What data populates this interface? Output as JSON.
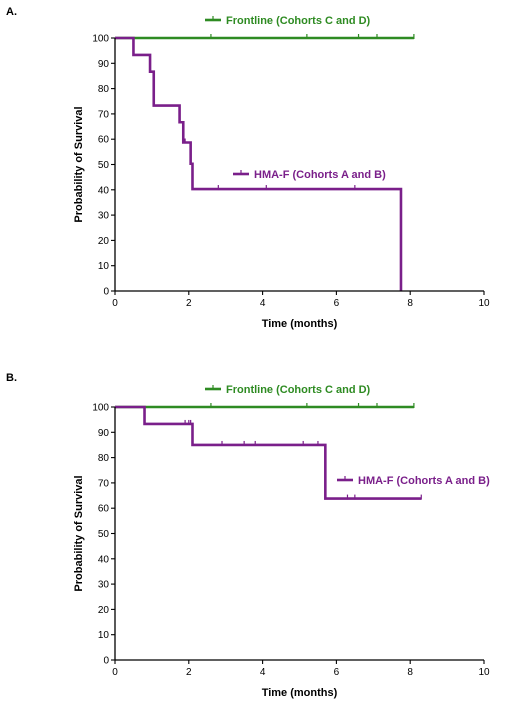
{
  "colors": {
    "frontline": "#2e8b22",
    "hmaf": "#7a1f8a",
    "axis": "#000000"
  },
  "chart_data": [
    {
      "type": "line",
      "panel_label": "A.",
      "xlabel": "Time (months)",
      "ylabel": "Probability of Survival",
      "xlim": [
        0,
        10
      ],
      "ylim": [
        0,
        100
      ],
      "xticks": [
        0,
        2,
        4,
        6,
        8,
        10
      ],
      "yticks": [
        0,
        10,
        20,
        30,
        40,
        50,
        60,
        70,
        80,
        90,
        100
      ],
      "legend_placement": "top-right",
      "series": [
        {
          "name": "Frontline (Cohorts C and D)",
          "color_key": "frontline",
          "step_points": [
            [
              0,
              100
            ],
            [
              8.1,
              100
            ]
          ],
          "censor_times": [
            2.6,
            5.2,
            6.6,
            7.1,
            8.1
          ]
        },
        {
          "name": "HMA-F (Cohorts A and B)",
          "color_key": "hmaf",
          "step_points": [
            [
              0,
              100
            ],
            [
              0.5,
              93.3
            ],
            [
              0.95,
              86.7
            ],
            [
              1.05,
              73.3
            ],
            [
              1.75,
              66.7
            ],
            [
              1.85,
              58.7
            ],
            [
              2.05,
              50.3
            ],
            [
              2.1,
              40.3
            ],
            [
              7.75,
              0
            ]
          ],
          "censor_times": [
            1.9,
            2.8,
            4.1,
            6.5
          ]
        }
      ]
    },
    {
      "type": "line",
      "panel_label": "B.",
      "xlabel": "Time (months)",
      "ylabel": "Probability of Survival",
      "xlim": [
        0,
        10
      ],
      "ylim": [
        0,
        100
      ],
      "xticks": [
        0,
        2,
        4,
        6,
        8,
        10
      ],
      "yticks": [
        0,
        10,
        20,
        30,
        40,
        50,
        60,
        70,
        80,
        90,
        100
      ],
      "legend_placement": "top-right",
      "series": [
        {
          "name": "Frontline (Cohorts C and D)",
          "color_key": "frontline",
          "step_points": [
            [
              0,
              100
            ],
            [
              8.1,
              100
            ]
          ],
          "censor_times": [
            2.6,
            5.2,
            6.6,
            7.1,
            8.1
          ]
        },
        {
          "name": "HMA-F (Cohorts A and B)",
          "color_key": "hmaf",
          "step_points": [
            [
              0,
              100
            ],
            [
              0.8,
              93.3
            ],
            [
              2.1,
              85
            ],
            [
              5.7,
              63.8
            ],
            [
              8.3,
              63.8
            ]
          ],
          "censor_times": [
            1.9,
            2.0,
            2.05,
            2.9,
            3.5,
            3.8,
            5.1,
            5.5,
            6.3,
            6.5,
            8.3
          ]
        }
      ]
    }
  ]
}
